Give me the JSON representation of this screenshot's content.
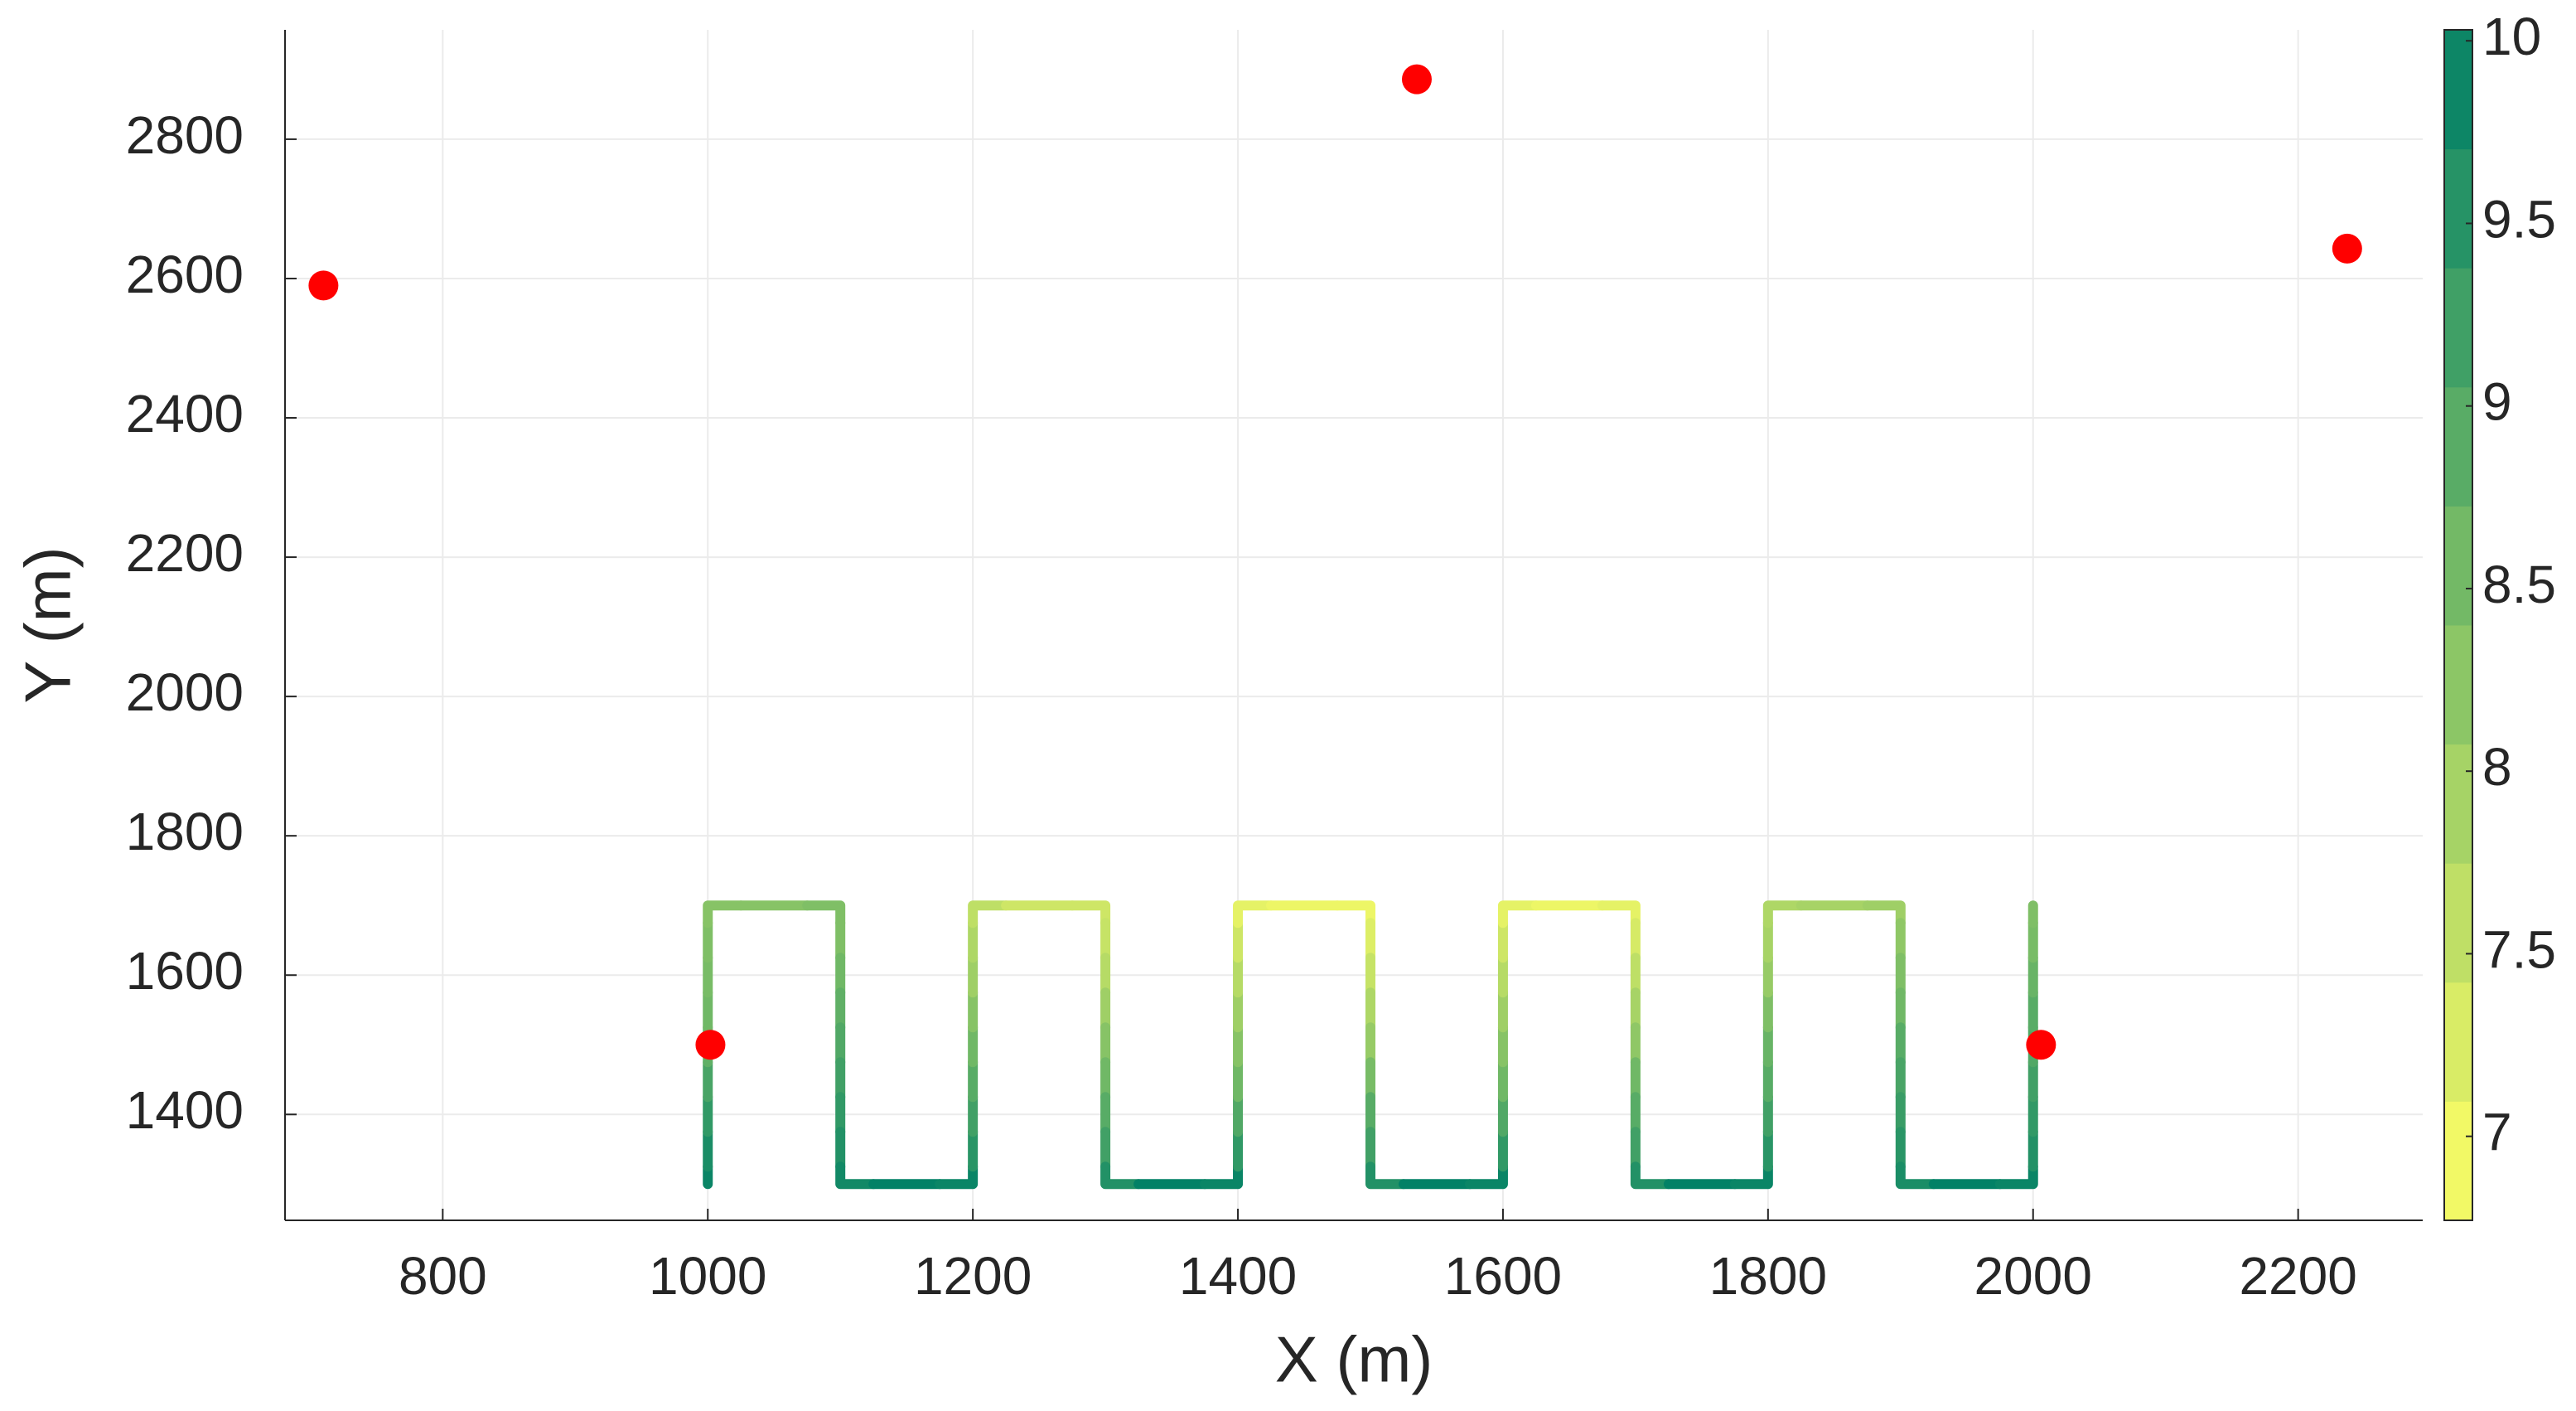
{
  "chart_data": {
    "type": "scatter",
    "xlabel": "X (m)",
    "ylabel": "Y (m)",
    "xlim": [
      681,
      2294
    ],
    "ylim": [
      1248,
      2957
    ],
    "xticks": [
      800,
      1000,
      1200,
      1400,
      1600,
      1800,
      2000,
      2200
    ],
    "yticks": [
      1400,
      1600,
      1800,
      2000,
      2200,
      2400,
      2600,
      2800
    ],
    "grid": true,
    "colorbar": {
      "clim": [
        6.77,
        10.03
      ],
      "ticks": [
        7,
        7.5,
        8,
        8.5,
        9,
        9.5,
        10
      ],
      "colormap": [
        "#ffff66",
        "#008066"
      ],
      "levels": 10
    },
    "series": [
      {
        "x": [
          1000,
          1000,
          1000,
          1000,
          1000,
          1000,
          1000,
          1000,
          1000,
          1050,
          1100,
          1100,
          1100,
          1100,
          1100,
          1100,
          1100,
          1100,
          1100,
          1150,
          1200,
          1200,
          1200,
          1200,
          1200,
          1200,
          1200,
          1200,
          1200,
          1250,
          1300,
          1300,
          1300,
          1300,
          1300,
          1300,
          1300,
          1300,
          1300,
          1350,
          1400,
          1400,
          1400,
          1400,
          1400,
          1400,
          1400,
          1400,
          1400,
          1450,
          1500,
          1500,
          1500,
          1500,
          1500,
          1500,
          1500,
          1500,
          1500,
          1550,
          1600,
          1600,
          1600,
          1600,
          1600,
          1600,
          1600,
          1600,
          1600,
          1650,
          1700,
          1700,
          1700,
          1700,
          1700,
          1700,
          1700,
          1700,
          1700,
          1750,
          1800,
          1800,
          1800,
          1800,
          1800,
          1800,
          1800,
          1800,
          1800,
          1850,
          1900,
          1900,
          1900,
          1900,
          1900,
          1900,
          1900,
          1900,
          1900,
          1950,
          2000,
          2000,
          2000,
          2000,
          2000,
          2000,
          2000,
          2000,
          2000
        ],
        "y": [
          1300,
          1350,
          1400,
          1450,
          1500,
          1550,
          1600,
          1650,
          1700,
          1700,
          1700,
          1650,
          1600,
          1550,
          1500,
          1450,
          1400,
          1350,
          1300,
          1300,
          1300,
          1350,
          1400,
          1450,
          1500,
          1550,
          1600,
          1650,
          1700,
          1700,
          1700,
          1650,
          1600,
          1550,
          1500,
          1450,
          1400,
          1350,
          1300,
          1300,
          1300,
          1350,
          1400,
          1450,
          1500,
          1550,
          1600,
          1650,
          1700,
          1700,
          1700,
          1650,
          1600,
          1550,
          1500,
          1450,
          1400,
          1350,
          1300,
          1300,
          1300,
          1350,
          1400,
          1450,
          1500,
          1550,
          1600,
          1650,
          1700,
          1700,
          1700,
          1650,
          1600,
          1550,
          1500,
          1450,
          1400,
          1350,
          1300,
          1300,
          1300,
          1350,
          1400,
          1450,
          1500,
          1550,
          1600,
          1650,
          1700,
          1700,
          1700,
          1650,
          1600,
          1550,
          1500,
          1450,
          1400,
          1350,
          1300,
          1300,
          1300,
          1350,
          1400,
          1450,
          1500,
          1550,
          1600,
          1650,
          1700
        ],
        "c": [
          9.9,
          9.7,
          9.4,
          9.1,
          8.8,
          8.6,
          8.5,
          8.4,
          8.3,
          8.3,
          8.4,
          8.4,
          8.6,
          8.8,
          9.0,
          9.2,
          9.4,
          9.6,
          9.8,
          10,
          9.9,
          9.5,
          9.2,
          8.9,
          8.6,
          8.3,
          8.0,
          7.8,
          7.6,
          7.4,
          7.4,
          7.5,
          7.7,
          8.0,
          8.3,
          8.6,
          8.9,
          9.2,
          9.6,
          10,
          9.9,
          9.4,
          9.0,
          8.6,
          8.3,
          8.0,
          7.7,
          7.4,
          7.1,
          7.0,
          7.0,
          7.2,
          7.5,
          7.8,
          8.1,
          8.5,
          8.9,
          9.2,
          9.6,
          10,
          9.9,
          9.4,
          9.0,
          8.6,
          8.3,
          8.0,
          7.7,
          7.4,
          7.1,
          7.0,
          7.1,
          7.3,
          7.6,
          7.9,
          8.2,
          8.6,
          8.9,
          9.2,
          9.6,
          10,
          9.9,
          9.5,
          9.2,
          8.9,
          8.7,
          8.4,
          8.1,
          7.9,
          7.8,
          7.9,
          8.0,
          8.2,
          8.4,
          8.6,
          8.9,
          9.1,
          9.3,
          9.5,
          9.7,
          10,
          9.9,
          9.6,
          9.4,
          9.2,
          9.0,
          8.9,
          8.7,
          8.5,
          8.4
        ]
      },
      {
        "color": "#ff0000",
        "x": [
          710,
          1535,
          2237,
          1002,
          2006
        ],
        "y": [
          2590,
          2886,
          2643,
          1500,
          1500
        ]
      }
    ]
  }
}
